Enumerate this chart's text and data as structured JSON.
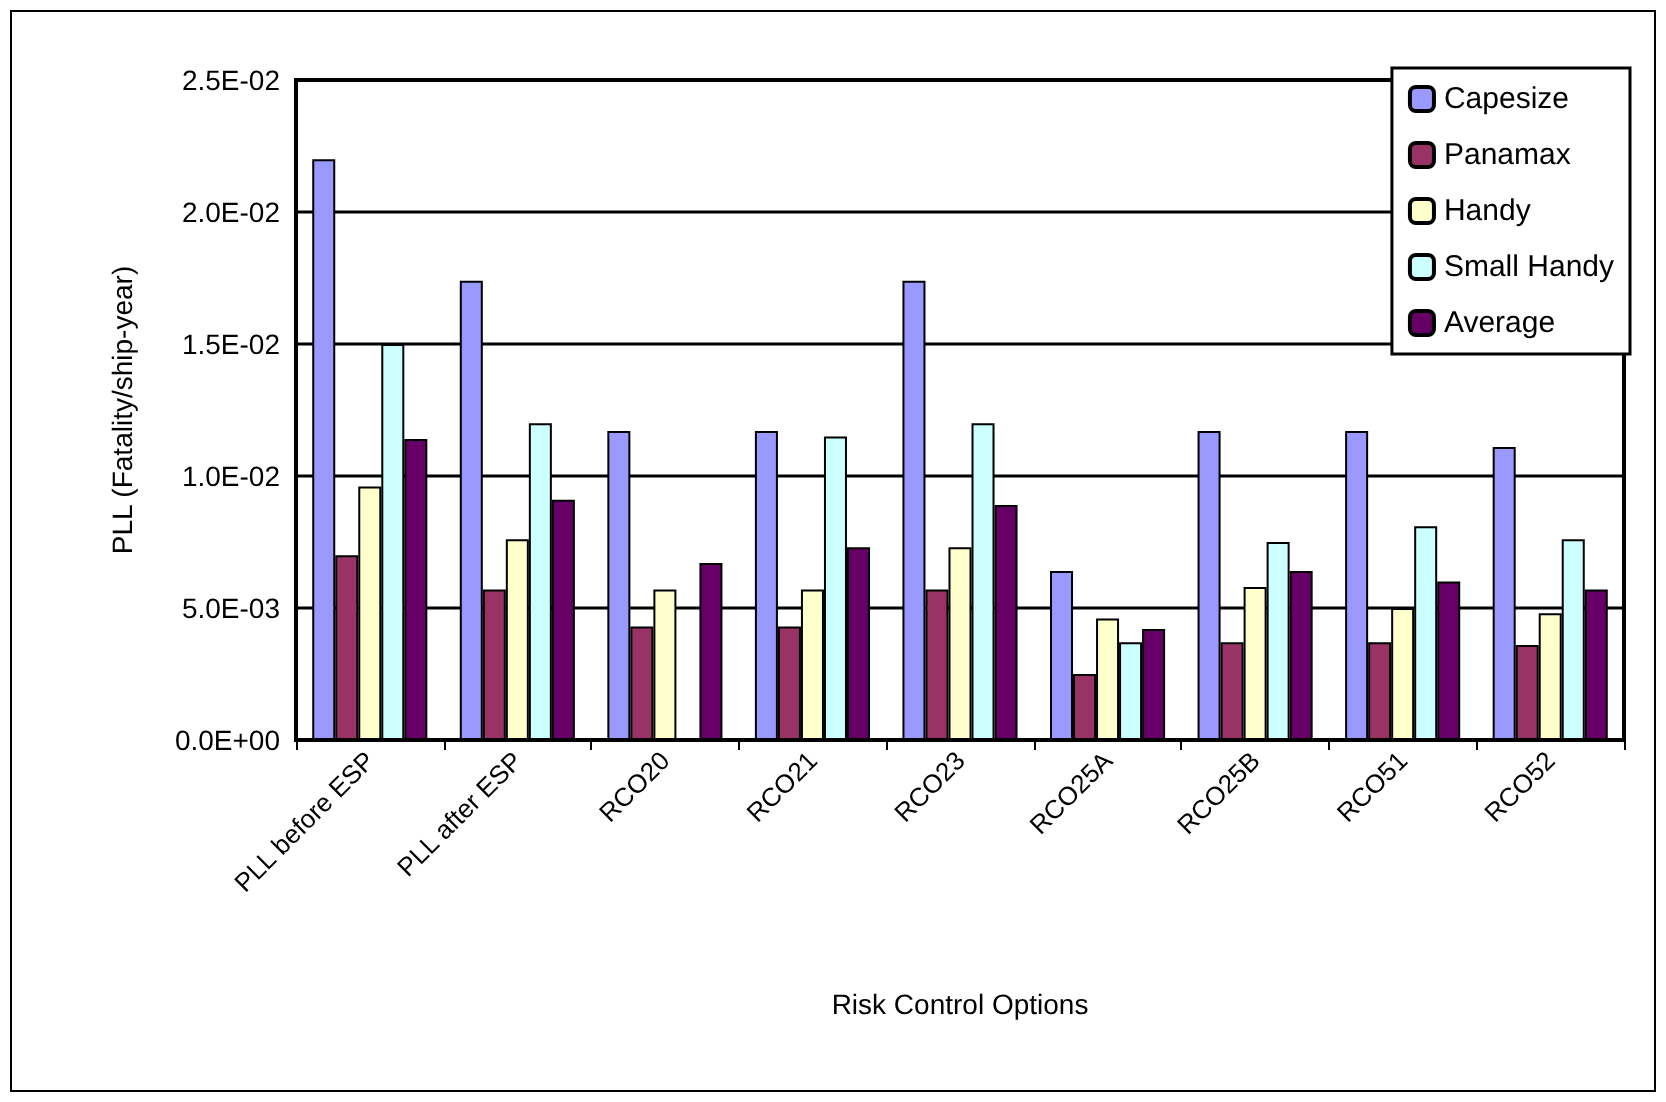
{
  "chart_data": {
    "type": "bar",
    "xlabel": "Risk Control Options",
    "ylabel": "PLL (Fatality/ship-year)",
    "categories": [
      "PLL before ESP",
      "PLL after ESP",
      "RCO20",
      "RCO21",
      "RCO23",
      "RCO25A",
      "RCO25B",
      "RCO51",
      "RCO52"
    ],
    "series": [
      {
        "name": "Capesize",
        "color": "#9999ff",
        "values": [
          0.022,
          0.0174,
          0.0117,
          0.0117,
          0.0174,
          0.0064,
          0.0117,
          0.0117,
          0.0111
        ]
      },
      {
        "name": "Panamax",
        "color": "#993366",
        "values": [
          0.007,
          0.0057,
          0.0043,
          0.0043,
          0.0057,
          0.0025,
          0.0037,
          0.0037,
          0.0036
        ]
      },
      {
        "name": "Handy",
        "color": "#ffffcc",
        "values": [
          0.0096,
          0.0076,
          0.0057,
          0.0057,
          0.0073,
          0.0046,
          0.0058,
          0.005,
          0.0048
        ]
      },
      {
        "name": "Small Handy",
        "color": "#ccffff",
        "values": [
          0.015,
          0.012,
          null,
          0.0115,
          0.012,
          0.0037,
          0.0075,
          0.0081,
          0.0076
        ]
      },
      {
        "name": "Average",
        "color": "#660066",
        "values": [
          0.0114,
          0.0091,
          0.0067,
          0.0073,
          0.0089,
          0.0042,
          0.0064,
          0.006,
          0.0057
        ]
      }
    ],
    "ylim": [
      0,
      0.025
    ],
    "yticks": [
      {
        "value": 0,
        "label": "0.0E+00"
      },
      {
        "value": 0.005,
        "label": "5.0E-03"
      },
      {
        "value": 0.01,
        "label": "1.0E-02"
      },
      {
        "value": 0.015,
        "label": "1.5E-02"
      },
      {
        "value": 0.02,
        "label": "2.0E-02"
      },
      {
        "value": 0.025,
        "label": "2.5E-02"
      }
    ],
    "grid": "y",
    "legend": "top right"
  }
}
